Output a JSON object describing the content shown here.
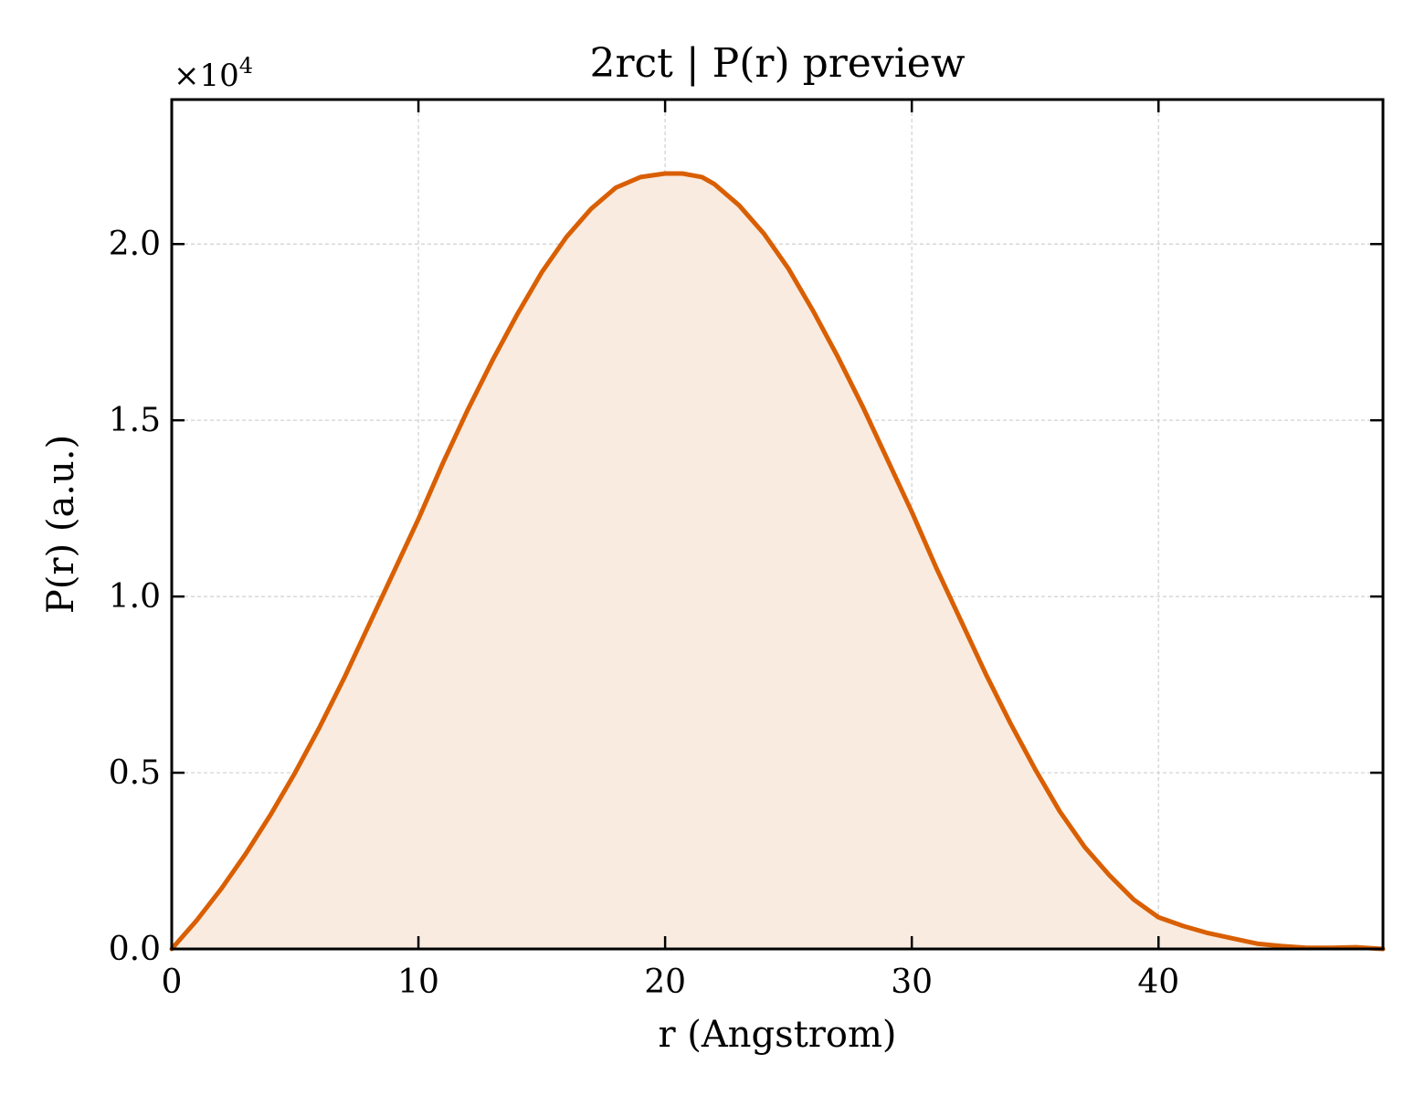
{
  "chart_data": {
    "type": "area",
    "title": "2rct | P(r) preview",
    "xlabel": "r (Angstrom)",
    "ylabel": "P(r) (a.u.)",
    "y_offset_label": "×10",
    "y_offset_exponent": "4",
    "xlim": [
      0,
      49.1
    ],
    "ylim": [
      0,
      2.41
    ],
    "y_scale_factor": 10000,
    "xticks": [
      0,
      10,
      20,
      30,
      40
    ],
    "xtick_labels": [
      "0",
      "10",
      "20",
      "30",
      "40"
    ],
    "yticks": [
      0.0,
      0.5,
      1.0,
      1.5,
      2.0
    ],
    "ytick_labels": [
      "0.0",
      "0.5",
      "1.0",
      "1.5",
      "2.0"
    ],
    "grid": true,
    "line_color": "#d95f02",
    "fill_color": "#f9ebe0",
    "series": [
      {
        "x": [
          0,
          1,
          2,
          3,
          4,
          5,
          6,
          7,
          8,
          9,
          10,
          11,
          12,
          13,
          14,
          15,
          16,
          17,
          18,
          19,
          20,
          20.7,
          21.5,
          22,
          23,
          24,
          25,
          26,
          27,
          28,
          29,
          30,
          31,
          32,
          33,
          34,
          35,
          36,
          37,
          38,
          39,
          40,
          41,
          42,
          43,
          44,
          45,
          46,
          47,
          48,
          49.1
        ],
        "y": [
          0.0,
          0.08,
          0.17,
          0.27,
          0.38,
          0.5,
          0.63,
          0.77,
          0.92,
          1.07,
          1.22,
          1.38,
          1.53,
          1.67,
          1.8,
          1.92,
          2.02,
          2.1,
          2.16,
          2.19,
          2.2,
          2.2,
          2.19,
          2.17,
          2.11,
          2.03,
          1.93,
          1.81,
          1.68,
          1.54,
          1.39,
          1.24,
          1.08,
          0.93,
          0.78,
          0.64,
          0.51,
          0.39,
          0.29,
          0.21,
          0.14,
          0.09,
          0.065,
          0.045,
          0.03,
          0.015,
          0.008,
          0.003,
          0.003,
          0.005,
          0.0
        ]
      }
    ]
  }
}
